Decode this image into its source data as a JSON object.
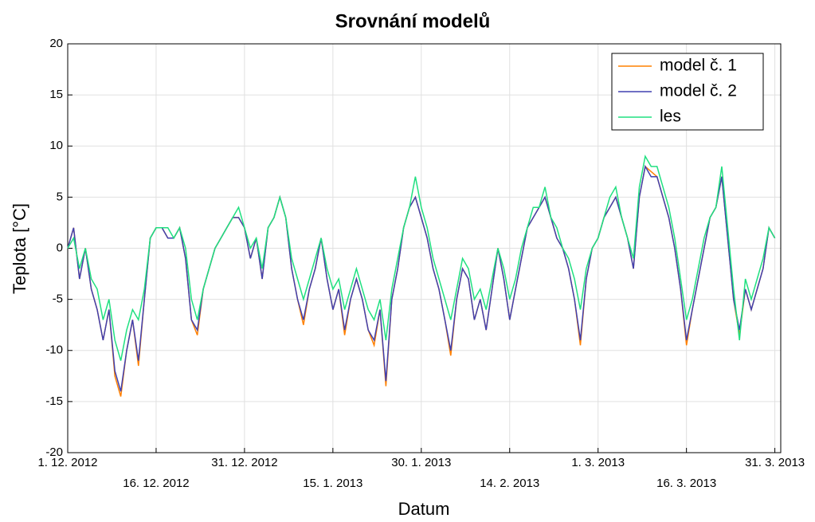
{
  "chart_data": {
    "type": "line",
    "title": "Srovnání modelů",
    "xlabel": "Datum",
    "ylabel": "Teplota [°C]",
    "x": [
      "2012-12-01",
      "2012-12-02",
      "2012-12-03",
      "2012-12-04",
      "2012-12-05",
      "2012-12-06",
      "2012-12-07",
      "2012-12-08",
      "2012-12-09",
      "2012-12-10",
      "2012-12-11",
      "2012-12-12",
      "2012-12-13",
      "2012-12-14",
      "2012-12-15",
      "2012-12-16",
      "2012-12-17",
      "2012-12-18",
      "2012-12-19",
      "2012-12-20",
      "2012-12-21",
      "2012-12-22",
      "2012-12-23",
      "2012-12-24",
      "2012-12-25",
      "2012-12-26",
      "2012-12-27",
      "2012-12-28",
      "2012-12-29",
      "2012-12-30",
      "2012-12-31",
      "2013-01-01",
      "2013-01-02",
      "2013-01-03",
      "2013-01-04",
      "2013-01-05",
      "2013-01-06",
      "2013-01-07",
      "2013-01-08",
      "2013-01-09",
      "2013-01-10",
      "2013-01-11",
      "2013-01-12",
      "2013-01-13",
      "2013-01-14",
      "2013-01-15",
      "2013-01-16",
      "2013-01-17",
      "2013-01-18",
      "2013-01-19",
      "2013-01-20",
      "2013-01-21",
      "2013-01-22",
      "2013-01-23",
      "2013-01-24",
      "2013-01-25",
      "2013-01-26",
      "2013-01-27",
      "2013-01-28",
      "2013-01-29",
      "2013-01-30",
      "2013-01-31",
      "2013-02-01",
      "2013-02-02",
      "2013-02-03",
      "2013-02-04",
      "2013-02-05",
      "2013-02-06",
      "2013-02-07",
      "2013-02-08",
      "2013-02-09",
      "2013-02-10",
      "2013-02-11",
      "2013-02-12",
      "2013-02-13",
      "2013-02-14",
      "2013-02-15",
      "2013-02-16",
      "2013-02-17",
      "2013-02-18",
      "2013-02-19",
      "2013-02-20",
      "2013-02-21",
      "2013-02-22",
      "2013-02-23",
      "2013-02-24",
      "2013-02-25",
      "2013-02-26",
      "2013-02-27",
      "2013-02-28",
      "2013-03-01",
      "2013-03-02",
      "2013-03-03",
      "2013-03-04",
      "2013-03-05",
      "2013-03-06",
      "2013-03-07",
      "2013-03-08",
      "2013-03-09",
      "2013-03-10",
      "2013-03-11",
      "2013-03-12",
      "2013-03-13",
      "2013-03-14",
      "2013-03-15",
      "2013-03-16",
      "2013-03-17",
      "2013-03-18",
      "2013-03-19",
      "2013-03-20",
      "2013-03-21",
      "2013-03-22",
      "2013-03-23",
      "2013-03-24",
      "2013-03-25",
      "2013-03-26",
      "2013-03-27",
      "2013-03-28",
      "2013-03-29",
      "2013-03-30",
      "2013-03-31"
    ],
    "series": [
      {
        "name": "model č. 1",
        "color": "#ff8000",
        "values": [
          0,
          2,
          -3,
          0,
          -4,
          -6,
          -9,
          -6,
          -12.5,
          -14.5,
          -10,
          -7,
          -11.5,
          -5,
          1,
          2,
          2,
          1,
          1,
          2,
          -1,
          -7,
          -8.5,
          -4,
          -2,
          0,
          1,
          2,
          3,
          3,
          2,
          -1,
          1,
          -3,
          2,
          3,
          5,
          3,
          -2,
          -5,
          -7.5,
          -4,
          -2,
          1,
          -3,
          -6,
          -4,
          -8.5,
          -5,
          -3,
          -5,
          -8,
          -9.5,
          -6,
          -13.5,
          -5,
          -2,
          2,
          4,
          5,
          3,
          1,
          -2,
          -4,
          -7,
          -10.5,
          -5,
          -2,
          -3,
          -7,
          -5,
          -8,
          -4,
          0,
          -3,
          -7,
          -4,
          -1,
          2,
          3,
          4,
          5,
          3,
          1,
          0,
          -2,
          -5,
          -9.5,
          -3,
          0,
          1,
          3,
          4,
          5,
          3,
          1,
          -2,
          5,
          8,
          7.5,
          7,
          5,
          3,
          0,
          -4,
          -9.5,
          -6,
          -3,
          0,
          3,
          4,
          7,
          1,
          -5,
          -8.5,
          -4,
          -6,
          -4,
          -2,
          2,
          1
        ]
      },
      {
        "name": "model č. 2",
        "color": "#4040b0",
        "values": [
          0,
          2,
          -3,
          0,
          -4,
          -6,
          -9,
          -6,
          -12,
          -14,
          -10,
          -7,
          -11,
          -5,
          1,
          2,
          2,
          1,
          1,
          2,
          -1,
          -7,
          -8,
          -4,
          -2,
          0,
          1,
          2,
          3,
          3,
          2,
          -1,
          1,
          -3,
          2,
          3,
          5,
          3,
          -2,
          -5,
          -7,
          -4,
          -2,
          1,
          -3,
          -6,
          -4,
          -8,
          -5,
          -3,
          -5,
          -8,
          -9,
          -6,
          -13,
          -5,
          -2,
          2,
          4,
          5,
          3,
          1,
          -2,
          -4,
          -7,
          -10,
          -5,
          -2,
          -3,
          -7,
          -5,
          -8,
          -4,
          0,
          -3,
          -7,
          -4,
          -1,
          2,
          3,
          4,
          5,
          3,
          1,
          0,
          -2,
          -5,
          -9,
          -3,
          0,
          1,
          3,
          4,
          5,
          3,
          1,
          -2,
          5,
          8,
          7,
          7,
          5,
          3,
          0,
          -4,
          -9,
          -6,
          -3,
          0,
          3,
          4,
          7,
          1,
          -5,
          -8,
          -4,
          -6,
          -4,
          -2,
          2,
          1
        ]
      },
      {
        "name": "les",
        "color": "#20e080",
        "values": [
          0,
          1,
          -2,
          0,
          -3,
          -4,
          -7,
          -5,
          -9,
          -11,
          -8,
          -6,
          -7,
          -4,
          1,
          2,
          2,
          2,
          1,
          2,
          0,
          -5,
          -7,
          -4,
          -2,
          0,
          1,
          2,
          3,
          4,
          2,
          0,
          1,
          -2,
          2,
          3,
          5,
          3,
          -1,
          -3,
          -5,
          -3,
          -1,
          1,
          -2,
          -4,
          -3,
          -6,
          -4,
          -2,
          -4,
          -6,
          -7,
          -5,
          -9,
          -4,
          -1,
          2,
          4,
          7,
          4,
          2,
          -1,
          -3,
          -5,
          -7,
          -4,
          -1,
          -2,
          -5,
          -4,
          -6,
          -3,
          0,
          -2,
          -5,
          -3,
          0,
          2,
          4,
          4,
          6,
          3,
          2,
          0,
          -1,
          -3,
          -6,
          -2,
          0,
          1,
          3,
          5,
          6,
          3,
          1,
          -1,
          6,
          9,
          8,
          8,
          6,
          4,
          1,
          -3,
          -7,
          -5,
          -2,
          1,
          3,
          4,
          8,
          2,
          -4,
          -9,
          -3,
          -5,
          -3,
          -1,
          2,
          1
        ]
      }
    ],
    "xlim": [
      "2012-12-01",
      "2013-04-01"
    ],
    "xticks": [
      {
        "value": "2012-12-01",
        "label": "1. 12. 2012"
      },
      {
        "value": "2012-12-16",
        "label": "16. 12. 2012"
      },
      {
        "value": "2012-12-31",
        "label": "31. 12. 2012"
      },
      {
        "value": "2013-01-15",
        "label": "15. 1. 2013"
      },
      {
        "value": "2013-01-30",
        "label": "30. 1. 2013"
      },
      {
        "value": "2013-02-14",
        "label": "14. 2. 2013"
      },
      {
        "value": "2013-03-01",
        "label": "1. 3. 2013"
      },
      {
        "value": "2013-03-16",
        "label": "16. 3. 2013"
      },
      {
        "value": "2013-03-31",
        "label": "31. 3. 2013"
      }
    ],
    "ylim": [
      -20,
      20
    ],
    "yticks": [
      -20,
      -15,
      -10,
      -5,
      0,
      5,
      10,
      15,
      20
    ],
    "grid": true,
    "legend": "upper right"
  }
}
